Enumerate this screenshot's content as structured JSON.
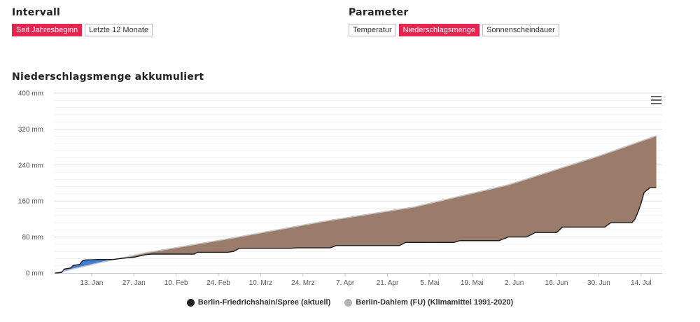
{
  "interval": {
    "title": "Intervall",
    "options": [
      {
        "label": "Seit Jahresbeginn",
        "active": true
      },
      {
        "label": "Letzte 12 Monate",
        "active": false
      }
    ]
  },
  "parameter": {
    "title": "Parameter",
    "options": [
      {
        "label": "Temperatur",
        "active": false
      },
      {
        "label": "Niederschlagsmenge",
        "active": true
      },
      {
        "label": "Sonnenscheindauer",
        "active": false
      }
    ]
  },
  "colors": {
    "accent": "#e4254f",
    "actual_line": "#1a1a1a",
    "climate_line": "#c4c4c4",
    "fill_above": "#9b7c6a",
    "fill_below": "#3f7fd6",
    "legend_actual": "#222222",
    "legend_climate": "#b3b3b3"
  },
  "chart_data": {
    "type": "area",
    "title": "Niederschlagsmenge akkumuliert",
    "ylim": [
      0,
      400
    ],
    "yticks": [
      "0 mm",
      "80 mm",
      "160 mm",
      "240 mm",
      "320 mm",
      "400 mm"
    ],
    "ytick_values": [
      0,
      80,
      160,
      240,
      320,
      400
    ],
    "x_range": [
      "Jan 1",
      "Jul 19"
    ],
    "xticks": [
      "13. Jan",
      "27. Jan",
      "10. Feb",
      "24. Feb",
      "10. Mrz",
      "24. Mrz",
      "7. Apr",
      "21. Apr",
      "5. Mai",
      "19. Mai",
      "2. Jun",
      "16. Jun",
      "30. Jun",
      "14. Jul"
    ],
    "xtick_dates": [
      "Jan 13",
      "Jan 27",
      "Feb 10",
      "Feb 24",
      "Mar 10",
      "Mar 24",
      "Apr 7",
      "Apr 21",
      "May 5",
      "May 19",
      "Jun 2",
      "Jun 16",
      "Jun 30",
      "Jul 14"
    ],
    "grid": true,
    "legend_position": "bottom",
    "series": [
      {
        "name": "Berlin-Friedrichshain/Spree (aktuell)",
        "points": [
          [
            "Jan 1",
            0
          ],
          [
            "Jan 3",
            1
          ],
          [
            "Jan 4",
            9
          ],
          [
            "Jan 6",
            11
          ],
          [
            "Jan 7",
            17
          ],
          [
            "Jan 9",
            19
          ],
          [
            "Jan 10",
            27
          ],
          [
            "Jan 11",
            29
          ],
          [
            "Jan 15",
            30
          ],
          [
            "Jan 20",
            30
          ],
          [
            "Jan 25",
            34
          ],
          [
            "Jan 27",
            35
          ],
          [
            "Jan 31",
            41
          ],
          [
            "Feb 2",
            42
          ],
          [
            "Feb 16",
            42
          ],
          [
            "Feb 17",
            46
          ],
          [
            "Feb 27",
            46
          ],
          [
            "Mar 1",
            48
          ],
          [
            "Mar 3",
            55
          ],
          [
            "Mar 20",
            55
          ],
          [
            "Mar 22",
            56
          ],
          [
            "Apr 2",
            56
          ],
          [
            "Apr 4",
            61
          ],
          [
            "Apr 25",
            61
          ],
          [
            "Apr 27",
            68
          ],
          [
            "May 13",
            68
          ],
          [
            "May 15",
            72
          ],
          [
            "May 28",
            72
          ],
          [
            "May 31",
            80
          ],
          [
            "Jun 6",
            80
          ],
          [
            "Jun 9",
            90
          ],
          [
            "Jun 16",
            90
          ],
          [
            "Jun 18",
            102
          ],
          [
            "Jul 2",
            102
          ],
          [
            "Jul 4",
            112
          ],
          [
            "Jul 11",
            112
          ],
          [
            "Jul 12",
            120
          ],
          [
            "Jul 13",
            136
          ],
          [
            "Jul 14",
            155
          ],
          [
            "Jul 15",
            179
          ],
          [
            "Jul 17",
            190
          ],
          [
            "Jul 19",
            190
          ]
        ]
      },
      {
        "name": "Berlin-Dahlem (FU) (Klimamittel 1991-2020)",
        "points": [
          [
            "Jan 1",
            0
          ],
          [
            "Jan 15",
            22
          ],
          [
            "Jan 31",
            45
          ],
          [
            "Feb 28",
            77
          ],
          [
            "Mar 31",
            115
          ],
          [
            "Apr 30",
            147
          ],
          [
            "May 31",
            196
          ],
          [
            "Jun 30",
            260
          ],
          [
            "Jul 19",
            305
          ]
        ]
      }
    ]
  }
}
